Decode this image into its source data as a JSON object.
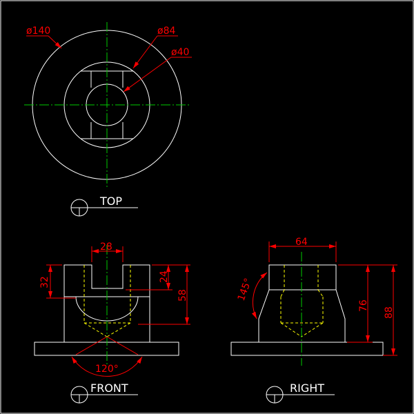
{
  "colors": {
    "background": "#000000",
    "outline": "#ffffff",
    "centerline": "#00cc00",
    "hidden_line": "#ffff00",
    "dimension": "#ff0000"
  },
  "views": {
    "top": {
      "title": "TOP"
    },
    "front": {
      "title": "FRONT"
    },
    "right": {
      "title": "RIGHT"
    }
  },
  "dimensions": {
    "dia_outer": "ø140",
    "dia_mid": "ø84",
    "dia_inner": "ø40",
    "slot_width": "28",
    "slot_depth": "32",
    "hole_depth": "24",
    "front_height": "58",
    "cone_angle": "120°",
    "top_width": "64",
    "right_height": "76",
    "total_height": "88",
    "chamfer_angle": "145°"
  }
}
